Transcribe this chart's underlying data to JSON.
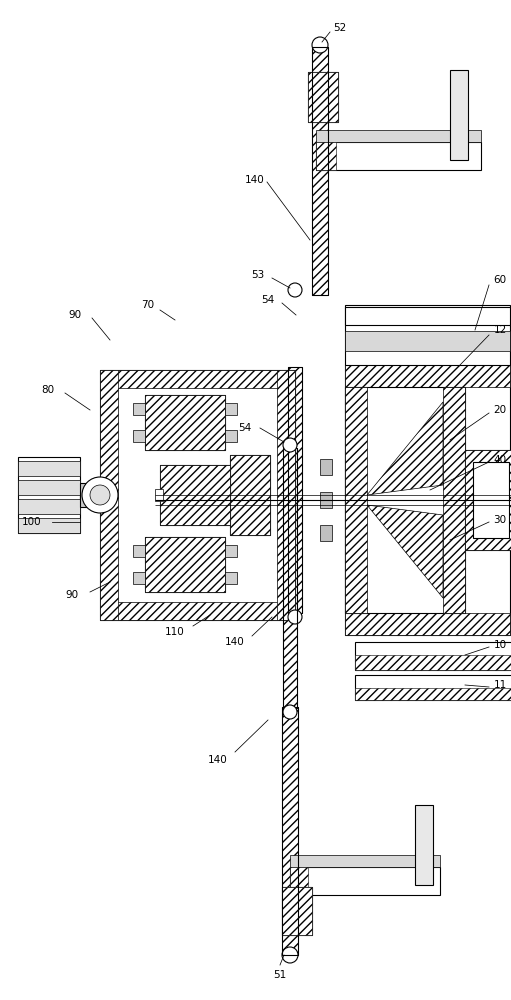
{
  "bg_color": "#ffffff",
  "fig_width": 5.11,
  "fig_height": 10.0,
  "lw_main": 0.8,
  "lw_thin": 0.5,
  "lw_label": 0.55
}
